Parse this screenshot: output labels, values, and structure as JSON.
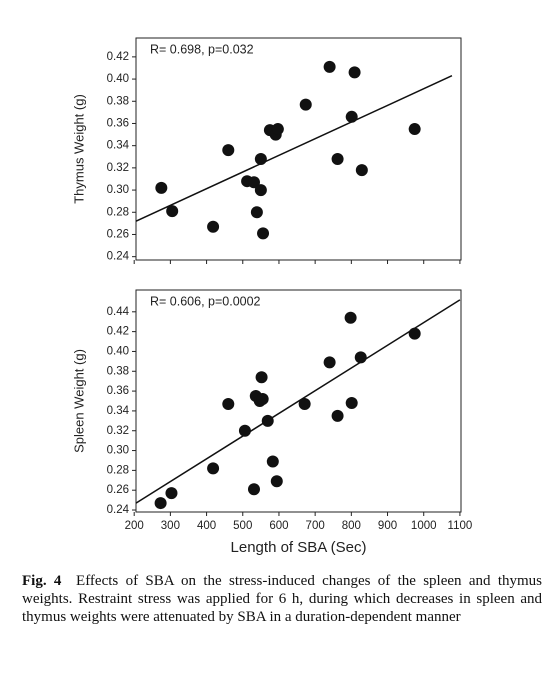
{
  "chart_data": [
    {
      "type": "scatter",
      "y_label": "Thymus Weight (g)",
      "annotation": "R= 0.698,  p=0.032",
      "color": "#111111",
      "x": [
        275,
        305,
        418,
        460,
        512,
        531,
        539,
        550,
        550,
        556,
        575,
        591,
        597,
        674,
        740,
        762,
        801,
        809,
        829,
        975
      ],
      "y": [
        0.302,
        0.281,
        0.267,
        0.336,
        0.308,
        0.307,
        0.28,
        0.3,
        0.328,
        0.261,
        0.354,
        0.35,
        0.355,
        0.377,
        0.411,
        0.328,
        0.366,
        0.406,
        0.318,
        0.355
      ],
      "trend_line": {
        "x": [
          205,
          1078
        ],
        "y": [
          0.272,
          0.403
        ]
      },
      "xlim": [
        205,
        1103
      ],
      "xticks": [
        200,
        300,
        400,
        500,
        600,
        700,
        800,
        900,
        1000,
        1100
      ],
      "ylim": [
        0.237,
        0.437
      ],
      "yticks": [
        0.24,
        0.26,
        0.28,
        {
          "value": 0.3,
          "label": "0.30"
        },
        0.32,
        0.34,
        0.36,
        0.38,
        {
          "value": 0.4,
          "label": "0.40"
        },
        0.42
      ]
    },
    {
      "type": "scatter",
      "y_label": "Spleen Weight (g)",
      "x_label": "Length of SBA (Sec)",
      "annotation": "R= 0.606,  p=0.0002",
      "color": "#111111",
      "x": [
        273,
        303,
        418,
        460,
        506,
        531,
        536,
        547,
        552,
        555,
        569,
        583,
        594,
        671,
        740,
        762,
        798,
        801,
        826,
        975
      ],
      "y": [
        0.247,
        0.257,
        0.282,
        0.347,
        0.32,
        0.261,
        0.355,
        0.35,
        0.374,
        0.352,
        0.33,
        0.289,
        0.269,
        0.347,
        0.389,
        0.335,
        0.434,
        0.348,
        0.394,
        0.418
      ],
      "trend_line": {
        "x": [
          205,
          1100
        ],
        "y": [
          0.247,
          0.452
        ]
      },
      "xlim": [
        205,
        1103
      ],
      "xticks": [
        200,
        300,
        400,
        500,
        600,
        700,
        800,
        900,
        1000,
        1100
      ],
      "ylim": [
        0.238,
        0.462
      ],
      "yticks": [
        0.24,
        0.26,
        0.28,
        {
          "value": 0.3,
          "label": "0.30"
        },
        0.32,
        0.34,
        0.36,
        0.38,
        {
          "value": 0.4,
          "label": "0.40"
        },
        0.42,
        0.44
      ]
    }
  ],
  "caption": {
    "label": "Fig. 4",
    "text": "Effects of SBA on the stress-induced changes of the spleen and thymus weights. Restraint stress was applied for 6 h, during which decreases in spleen and thymus weights were attenuated by SBA in a duration-dependent manner"
  }
}
